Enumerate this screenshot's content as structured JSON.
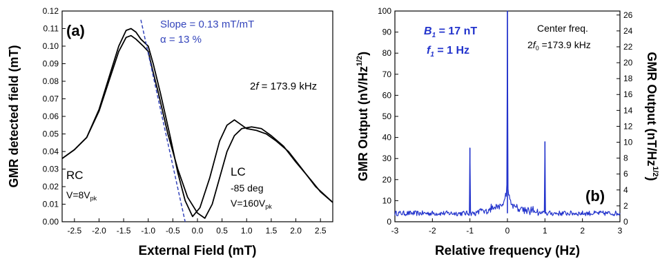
{
  "chart_data": [
    {
      "type": "line",
      "panel": "(a)",
      "xlabel": "External Field (mT)",
      "ylabel": "GMR detected field (mT)",
      "xlim": [
        -2.75,
        2.75
      ],
      "ylim": [
        0,
        0.12
      ],
      "xticks": [
        "-2.5",
        "-2.0",
        "-1.5",
        "-1.0",
        "-0.5",
        "0.0",
        "0.5",
        "1.0",
        "1.5",
        "2.0",
        "2.5"
      ],
      "yticks": [
        "0.00",
        "0.01",
        "0.02",
        "0.03",
        "0.04",
        "0.05",
        "0.06",
        "0.07",
        "0.08",
        "0.09",
        "0.10",
        "0.11",
        "0.12"
      ],
      "grid": false,
      "annotations": {
        "slope": "Slope = 0.13 mT/mT",
        "alpha": "α = 13 %",
        "freq_prefix": "2",
        "freq_var": "f",
        "freq_value": " = 173.9 kHz",
        "rc": "RC",
        "rc_v": "V=8V",
        "rc_v_sub": "pk",
        "lc": "LC",
        "lc_deg": "-85 deg",
        "lc_v": "V=160V",
        "lc_v_sub": "pk"
      },
      "series": [
        {
          "color": "#000000",
          "x": [
            -2.75,
            -2.5,
            -2.25,
            -2.0,
            -1.8,
            -1.6,
            -1.45,
            -1.35,
            -1.25,
            -1.1,
            -1.0,
            -0.9,
            -0.8,
            -0.6,
            -0.4,
            -0.2,
            0.0,
            0.15,
            0.3,
            0.45,
            0.6,
            0.75,
            0.9,
            1.1,
            1.3,
            1.5,
            1.75,
            2.0,
            2.3,
            2.5,
            2.75
          ],
          "y": [
            0.036,
            0.041,
            0.048,
            0.063,
            0.08,
            0.097,
            0.105,
            0.106,
            0.104,
            0.1,
            0.097,
            0.085,
            0.074,
            0.05,
            0.03,
            0.014,
            0.005,
            0.002,
            0.01,
            0.025,
            0.04,
            0.049,
            0.053,
            0.054,
            0.053,
            0.049,
            0.043,
            0.034,
            0.024,
            0.017,
            0.011
          ]
        },
        {
          "color": "#000000",
          "x": [
            -2.75,
            -2.5,
            -2.25,
            -2.0,
            -1.8,
            -1.6,
            -1.45,
            -1.35,
            -1.25,
            -1.15,
            -1.0,
            -0.9,
            -0.75,
            -0.55,
            -0.4,
            -0.25,
            -0.1,
            0.05,
            0.25,
            0.45,
            0.6,
            0.75,
            0.85,
            1.0,
            1.2,
            1.4,
            1.6,
            1.85,
            2.1,
            2.4,
            2.75
          ],
          "y": [
            0.036,
            0.041,
            0.048,
            0.064,
            0.082,
            0.1,
            0.109,
            0.11,
            0.108,
            0.104,
            0.1,
            0.09,
            0.073,
            0.048,
            0.028,
            0.012,
            0.003,
            0.008,
            0.025,
            0.046,
            0.055,
            0.058,
            0.056,
            0.053,
            0.052,
            0.05,
            0.046,
            0.04,
            0.031,
            0.02,
            0.011
          ]
        }
      ],
      "fit_line": {
        "color": "#3344bb",
        "x": [
          -1.15,
          -0.25
        ],
        "y": [
          0.115,
          0.0
        ]
      }
    },
    {
      "type": "line",
      "panel": "(b)",
      "xlabel": "Relative frequency (Hz)",
      "ylabel": "GMR Output (nV/Hz",
      "ylabel_sup": "1/2",
      "ylabel_close": ")",
      "y2label": "GMR Output (nT/Hz",
      "y2label_sup": "1/2",
      "y2label_close": ")",
      "xlim": [
        -3,
        3
      ],
      "ylim": [
        0,
        100
      ],
      "y2lim": [
        0,
        26.5
      ],
      "xticks": [
        "-3",
        "-2",
        "-1",
        "0",
        "1",
        "2",
        "3"
      ],
      "yticks": [
        "0",
        "10",
        "20",
        "30",
        "40",
        "50",
        "60",
        "70",
        "80",
        "90",
        "100"
      ],
      "y2ticks": [
        "0",
        "2",
        "4",
        "6",
        "8",
        "10",
        "12",
        "14",
        "16",
        "18",
        "20",
        "22",
        "24",
        "26"
      ],
      "grid": false,
      "annotations": {
        "b1_var": "B",
        "b1_sub": "1",
        "b1_value": " = 17 nT",
        "f1_var": "f",
        "f1_sub": "1",
        "f1_value": " = 1 Hz",
        "center_title": "Center freq.",
        "center_prefix": "2",
        "center_var": "f",
        "center_sub": "0",
        "center_value": " =173.9 kHz"
      },
      "series": [
        {
          "color": "#2233cc",
          "peaks": [
            {
              "x": -1.0,
              "y": 35
            },
            {
              "x": 1.0,
              "y": 38
            },
            {
              "x": 0.0,
              "y": 100
            }
          ],
          "noise_floor": 4
        }
      ]
    }
  ]
}
